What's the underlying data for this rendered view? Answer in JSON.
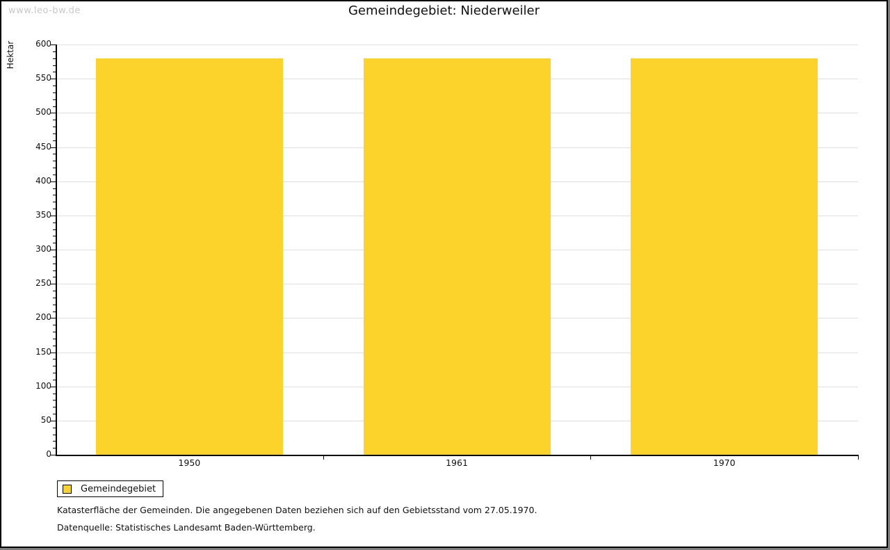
{
  "watermark": "www.leo-bw.de",
  "title": "Gemeindegebiet: Niederweiler",
  "chart_data": {
    "type": "bar",
    "title": "Gemeindegebiet: Niederweiler",
    "categories": [
      "1950",
      "1961",
      "1970"
    ],
    "series": [
      {
        "name": "Gemeindegebiet",
        "values": [
          580,
          580,
          580
        ],
        "color": "#fcd32b"
      }
    ],
    "xlabel": "",
    "ylabel": "Hektar",
    "ylim": [
      0,
      600
    ],
    "ytick_major": 50,
    "ytick_minor": 10,
    "grid": true,
    "grid_color": "#e0e0e0",
    "axis_color": "#000000",
    "legend_position": "bottom-left"
  },
  "legend": {
    "label": "Gemeindegebiet",
    "swatch_color": "#fcd32b"
  },
  "footnotes": [
    "Katasterfläche der Gemeinden. Die angegebenen Daten beziehen sich auf den Gebietsstand vom 27.05.1970.",
    "Datenquelle: Statistisches Landesamt Baden-Württemberg."
  ]
}
